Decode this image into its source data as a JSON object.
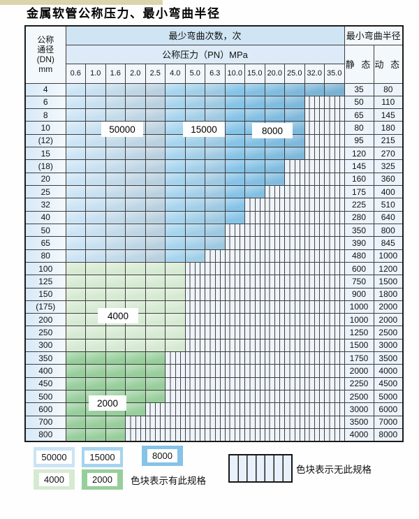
{
  "title": "金属软管公称压力、最小弯曲半径",
  "header": {
    "dn": [
      "公称",
      "通径",
      "(DN)",
      "mm"
    ],
    "cycles": "最少弯曲次数，次",
    "pressure": "公称压力（PN）MPa",
    "radius": "最小弯曲半径",
    "static": "静 态",
    "dynamic": "动 态"
  },
  "colors": {
    "band_50000": "#cbe4f5",
    "band_15000": "#a6d4ee",
    "band_8000": "#85c3e7",
    "band_4000": "#d6ead2",
    "band_2000": "#97ce9b",
    "hatch_bg": "#eef4fa",
    "hatch_line": "#454545",
    "grid_line": "#3d3d3d",
    "header_blue": "#d0e5f4",
    "decor_strip": "#dcd4ac"
  },
  "region_labels": [
    "50000",
    "15000",
    "8000",
    "4000",
    "2000"
  ],
  "legend": {
    "items": [
      {
        "label": "50000",
        "color": "#cbe4f5"
      },
      {
        "label": "15000",
        "color": "#a6d4ee"
      },
      {
        "label": "8000",
        "color": "#85c3e7"
      },
      {
        "label": "4000",
        "color": "#d6ead2"
      },
      {
        "label": "2000",
        "color": "#97ce9b"
      }
    ],
    "has_spec_text": "色块表示有此规格",
    "no_spec_text": "色块表示无此规格"
  },
  "chart_data": {
    "type": "table",
    "title": "金属软管公称压力、最小弯曲半径",
    "pressure_columns_MPa": [
      "0.6",
      "1.0",
      "1.6",
      "2.0",
      "2.5",
      "4.0",
      "5.0",
      "6.3",
      "10.0",
      "15.0",
      "20.0",
      "25.0",
      "32.0",
      "35.0"
    ],
    "bend_cycle_bands": {
      "blue_region_by_pressure": {
        "50000": [
          "0.6",
          "1.0",
          "1.6",
          "2.0",
          "2.5"
        ],
        "15000": [
          "4.0",
          "5.0",
          "6.3"
        ],
        "8000": [
          "10.0",
          "15.0",
          "20.0",
          "25.0",
          "32.0",
          "35.0"
        ]
      },
      "green_region_by_dn": {
        "4000": [
          "100",
          "125",
          "150",
          "(175)",
          "200",
          "250",
          "300"
        ],
        "2000": [
          "350",
          "400",
          "450",
          "500",
          "600",
          "700",
          "800"
        ]
      }
    },
    "rows": [
      {
        "dn": "4",
        "colored_through": "35.0",
        "band": "blue",
        "static": "35",
        "dynamic": "80"
      },
      {
        "dn": "6",
        "colored_through": "25.0",
        "band": "blue",
        "static": "50",
        "dynamic": "110"
      },
      {
        "dn": "8",
        "colored_through": "25.0",
        "band": "blue",
        "static": "65",
        "dynamic": "145"
      },
      {
        "dn": "10",
        "colored_through": "25.0",
        "band": "blue",
        "static": "80",
        "dynamic": "180"
      },
      {
        "dn": "(12)",
        "colored_through": "25.0",
        "band": "blue",
        "static": "95",
        "dynamic": "215"
      },
      {
        "dn": "15",
        "colored_through": "25.0",
        "band": "blue",
        "static": "120",
        "dynamic": "270"
      },
      {
        "dn": "(18)",
        "colored_through": "20.0",
        "band": "blue",
        "static": "145",
        "dynamic": "325"
      },
      {
        "dn": "20",
        "colored_through": "20.0",
        "band": "blue",
        "static": "160",
        "dynamic": "360"
      },
      {
        "dn": "25",
        "colored_through": "15.0",
        "band": "blue",
        "static": "175",
        "dynamic": "400"
      },
      {
        "dn": "32",
        "colored_through": "10.0",
        "band": "blue",
        "static": "225",
        "dynamic": "510"
      },
      {
        "dn": "40",
        "colored_through": "10.0",
        "band": "blue",
        "static": "280",
        "dynamic": "640"
      },
      {
        "dn": "50",
        "colored_through": "6.3",
        "band": "blue",
        "static": "350",
        "dynamic": "800"
      },
      {
        "dn": "65",
        "colored_through": "6.3",
        "band": "blue",
        "static": "390",
        "dynamic": "845"
      },
      {
        "dn": "80",
        "colored_through": "5.0",
        "band": "blue",
        "static": "480",
        "dynamic": "1000"
      },
      {
        "dn": "100",
        "colored_through": "4.0",
        "band": "4000",
        "static": "600",
        "dynamic": "1200"
      },
      {
        "dn": "125",
        "colored_through": "4.0",
        "band": "4000",
        "static": "750",
        "dynamic": "1500"
      },
      {
        "dn": "150",
        "colored_through": "4.0",
        "band": "4000",
        "static": "900",
        "dynamic": "1800"
      },
      {
        "dn": "(175)",
        "colored_through": "4.0",
        "band": "4000",
        "static": "1000",
        "dynamic": "2000"
      },
      {
        "dn": "200",
        "colored_through": "4.0",
        "band": "4000",
        "static": "1000",
        "dynamic": "2000"
      },
      {
        "dn": "250",
        "colored_through": "4.0",
        "band": "4000",
        "static": "1250",
        "dynamic": "2500"
      },
      {
        "dn": "300",
        "colored_through": "4.0",
        "band": "4000",
        "static": "1500",
        "dynamic": "3000"
      },
      {
        "dn": "350",
        "colored_through": "2.5",
        "band": "2000",
        "static": "1750",
        "dynamic": "3500"
      },
      {
        "dn": "400",
        "colored_through": "2.5",
        "band": "2000",
        "static": "2000",
        "dynamic": "4000"
      },
      {
        "dn": "450",
        "colored_through": "2.5",
        "band": "2000",
        "static": "2250",
        "dynamic": "4500"
      },
      {
        "dn": "500",
        "colored_through": "2.5",
        "band": "2000",
        "static": "2500",
        "dynamic": "5000"
      },
      {
        "dn": "600",
        "colored_through": "2.0",
        "band": "2000",
        "static": "3000",
        "dynamic": "6000"
      },
      {
        "dn": "700",
        "colored_through": "1.6",
        "band": "2000",
        "static": "3500",
        "dynamic": "7000"
      },
      {
        "dn": "800",
        "colored_through": "1.6",
        "band": "2000",
        "static": "4000",
        "dynamic": "8000"
      }
    ]
  }
}
